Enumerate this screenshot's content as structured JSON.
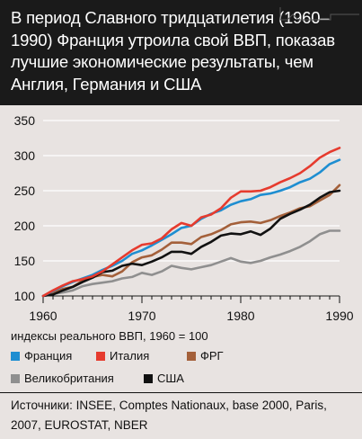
{
  "title": "В период Славного тридцатилетия (1960–1990) Франция утроила свой ВВП, показав лучшие экономические результаты, чем Англия, Германия и США",
  "note": "индексы реального ВВП, 1960 = 100",
  "sources": "Источники: INSEE, Comptes Nationaux, base 2000, Paris, 2007, EUROSTAT, NBER",
  "chart_data": {
    "type": "line",
    "title": "",
    "xlabel": "",
    "ylabel": "",
    "x_ticks": [
      1960,
      1970,
      1980,
      1990
    ],
    "y_ticks": [
      100,
      150,
      200,
      250,
      300,
      350
    ],
    "xlim": [
      1960,
      1990
    ],
    "ylim": [
      100,
      350
    ],
    "grid": "horizontal",
    "x": [
      1960,
      1961,
      1962,
      1963,
      1964,
      1965,
      1966,
      1967,
      1968,
      1969,
      1970,
      1971,
      1972,
      1973,
      1974,
      1975,
      1976,
      1977,
      1978,
      1979,
      1980,
      1981,
      1982,
      1983,
      1984,
      1985,
      1986,
      1987,
      1988,
      1989,
      1990
    ],
    "series": [
      {
        "name": "Франция",
        "color": "#1e8ed1",
        "values": [
          100,
          107,
          114,
          120,
          125,
          130,
          137,
          143,
          150,
          160,
          165,
          172,
          180,
          188,
          197,
          200,
          210,
          217,
          222,
          230,
          235,
          238,
          244,
          246,
          250,
          255,
          262,
          267,
          276,
          288,
          294
        ]
      },
      {
        "name": "Италия",
        "color": "#e63b2e",
        "values": [
          100,
          108,
          115,
          121,
          124,
          128,
          135,
          145,
          155,
          165,
          173,
          175,
          182,
          195,
          204,
          200,
          212,
          216,
          225,
          240,
          249,
          249,
          250,
          255,
          262,
          268,
          275,
          285,
          297,
          305,
          311
        ]
      },
      {
        "name": "ФРГ",
        "color": "#a4603a",
        "values": [
          100,
          104,
          110,
          113,
          122,
          127,
          130,
          128,
          135,
          148,
          155,
          158,
          166,
          176,
          176,
          174,
          184,
          188,
          194,
          202,
          205,
          206,
          204,
          208,
          214,
          219,
          225,
          228,
          236,
          244,
          258
        ]
      },
      {
        "name": "Великобритания",
        "color": "#8f8f8f",
        "values": [
          100,
          103,
          105,
          108,
          114,
          117,
          119,
          121,
          125,
          127,
          133,
          130,
          135,
          143,
          140,
          138,
          141,
          144,
          149,
          154,
          149,
          147,
          150,
          155,
          159,
          164,
          170,
          178,
          188,
          193,
          193
        ]
      },
      {
        "name": "США",
        "color": "#111111",
        "values": [
          100,
          102,
          108,
          113,
          120,
          126,
          134,
          136,
          143,
          146,
          144,
          149,
          155,
          163,
          163,
          160,
          170,
          177,
          186,
          189,
          188,
          192,
          187,
          196,
          210,
          217,
          223,
          230,
          240,
          248,
          250
        ]
      }
    ]
  }
}
